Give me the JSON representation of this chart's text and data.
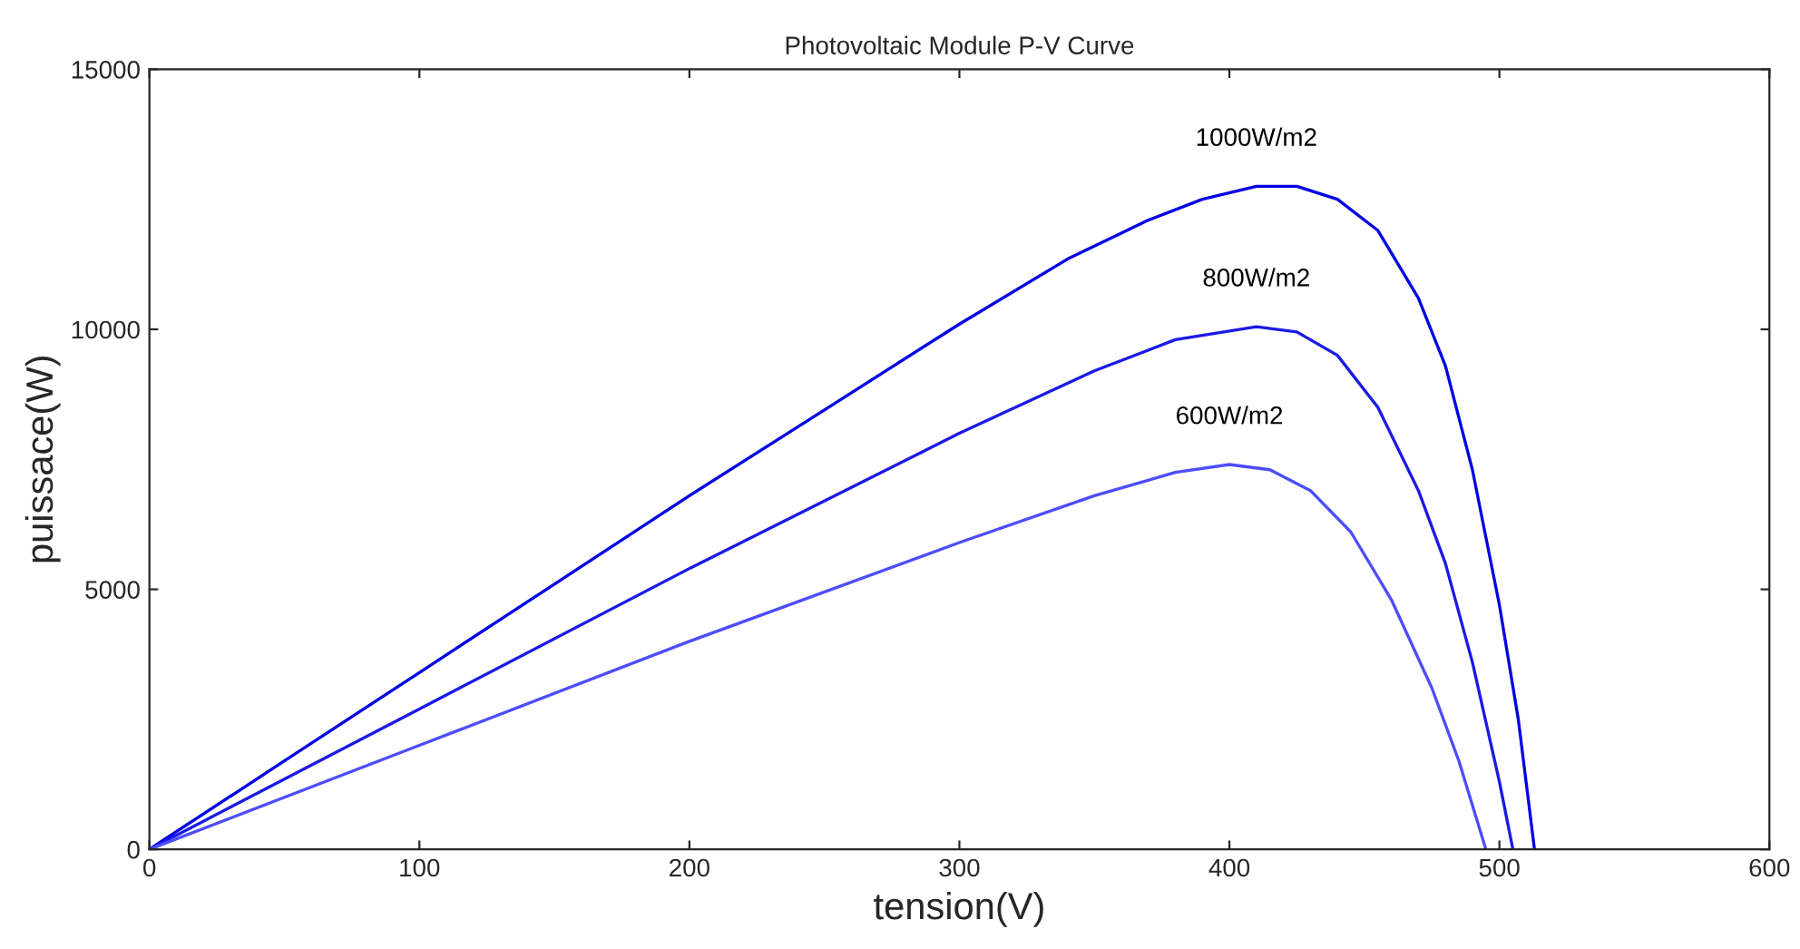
{
  "chart_data": {
    "type": "line",
    "title": "Photovoltaic Module P-V Curve",
    "xlabel": "tension(V)",
    "ylabel": "puissace(W)",
    "xlim": [
      0,
      600
    ],
    "ylim": [
      0,
      15000
    ],
    "xticks": [
      0,
      100,
      200,
      300,
      400,
      500,
      600
    ],
    "yticks": [
      0,
      5000,
      10000,
      15000
    ],
    "grid": false,
    "legend": false,
    "series": [
      {
        "name": "1000W/m2",
        "color": "#0000e6",
        "x": [
          0,
          50,
          100,
          150,
          200,
          250,
          300,
          340,
          370,
          390,
          410,
          425,
          440,
          455,
          470,
          480,
          490,
          500,
          507,
          513
        ],
        "values": [
          0,
          1700,
          3400,
          5100,
          6800,
          8450,
          10100,
          11350,
          12100,
          12500,
          12750,
          12750,
          12500,
          11900,
          10600,
          9300,
          7300,
          4700,
          2500,
          0
        ]
      },
      {
        "name": "800W/m2",
        "color": "#1a1ae6",
        "x": [
          0,
          100,
          200,
          300,
          350,
          380,
          410,
          425,
          440,
          455,
          470,
          480,
          490,
          500,
          505
        ],
        "values": [
          0,
          2700,
          5400,
          8000,
          9200,
          9800,
          10050,
          9950,
          9500,
          8500,
          6900,
          5500,
          3600,
          1300,
          0
        ]
      },
      {
        "name": "600W/m2",
        "color": "#4d4dff",
        "x": [
          0,
          100,
          200,
          300,
          350,
          380,
          400,
          415,
          430,
          445,
          460,
          475,
          485,
          495
        ],
        "values": [
          0,
          2000,
          4000,
          5900,
          6800,
          7250,
          7400,
          7300,
          6900,
          6100,
          4800,
          3100,
          1700,
          0
        ]
      }
    ]
  }
}
